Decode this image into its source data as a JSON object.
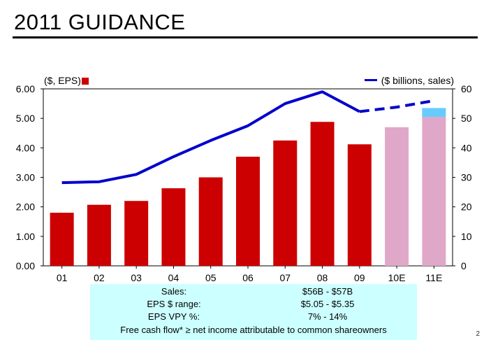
{
  "slide": {
    "title": "2011 GUIDANCE",
    "page_number": "2"
  },
  "legend": {
    "left_label": "($, EPS)",
    "right_label": "($ billions, sales)"
  },
  "guidance_box": {
    "rows": [
      {
        "label": "Sales:",
        "value": "$56B - $57B"
      },
      {
        "label": "EPS $ range:",
        "value": "$5.05 - $5.35"
      },
      {
        "label": "EPS VPY %:",
        "value": "7% - 14%"
      }
    ],
    "footnote": "Free cash flow* ≥ net income attributable to common shareowners"
  },
  "colors": {
    "bar_actual": "#cc0000",
    "bar_estimate": "#e0a8c8",
    "bar_estimate_range": "#66ccff",
    "sales_line": "#0000cc",
    "guidance_background": "#ccffff"
  },
  "chart_data": {
    "type": "bar",
    "categories": [
      "01",
      "02",
      "03",
      "04",
      "05",
      "06",
      "07",
      "08",
      "09",
      "10E",
      "11E"
    ],
    "series": [
      {
        "name": "($, EPS)",
        "axis": "left",
        "type": "bar",
        "values": [
          1.8,
          2.07,
          2.2,
          2.63,
          3.0,
          3.7,
          4.25,
          4.88,
          4.12,
          4.7,
          5.05
        ],
        "estimate_from_index": 9,
        "estimate_range_top": [
          null,
          null,
          null,
          null,
          null,
          null,
          null,
          null,
          null,
          null,
          5.35
        ]
      },
      {
        "name": "($ billions, sales)",
        "axis": "right",
        "type": "line",
        "values": [
          28.2,
          28.5,
          31.0,
          37.0,
          42.5,
          47.5,
          55.0,
          59.0,
          52.3,
          53.8,
          56.0
        ],
        "dashed_from_index": 8
      }
    ],
    "y_left": {
      "ylim": [
        0,
        6
      ],
      "ticks": [
        0,
        1,
        2,
        3,
        4,
        5,
        6
      ],
      "tick_labels": [
        "0.00",
        "1.00",
        "2.00",
        "3.00",
        "4.00",
        "5.00",
        "6.00"
      ]
    },
    "y_right": {
      "ylim": [
        0,
        60
      ],
      "ticks": [
        0,
        10,
        20,
        30,
        40,
        50,
        60
      ],
      "tick_labels": [
        "0",
        "10",
        "20",
        "30",
        "40",
        "50",
        "60"
      ]
    },
    "grid": false
  }
}
